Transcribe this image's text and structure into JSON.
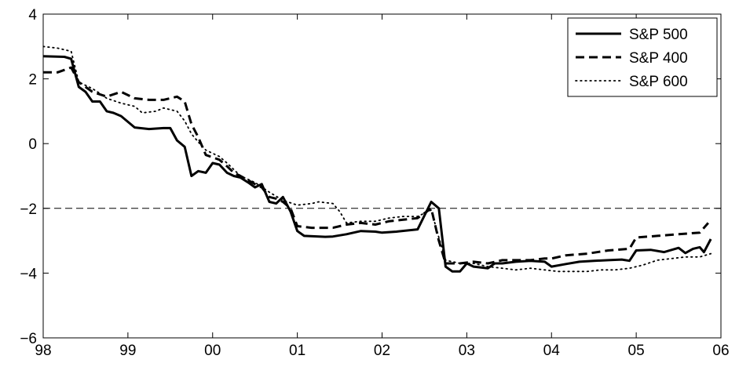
{
  "chart_data": {
    "type": "line",
    "title": "",
    "xlabel": "",
    "ylabel": "",
    "xlim": [
      1998,
      2006
    ],
    "ylim": [
      -6,
      4
    ],
    "x_ticks": [
      {
        "value": 1998,
        "label": "98"
      },
      {
        "value": 1999,
        "label": "99"
      },
      {
        "value": 2000,
        "label": "00"
      },
      {
        "value": 2001,
        "label": "01"
      },
      {
        "value": 2002,
        "label": "02"
      },
      {
        "value": 2003,
        "label": "03"
      },
      {
        "value": 2004,
        "label": "04"
      },
      {
        "value": 2005,
        "label": "05"
      },
      {
        "value": 2006,
        "label": "06"
      }
    ],
    "y_ticks": [
      {
        "value": 4,
        "label": "4"
      },
      {
        "value": 2,
        "label": "2"
      },
      {
        "value": 0,
        "label": "0"
      },
      {
        "value": -2,
        "label": "−2"
      },
      {
        "value": -4,
        "label": "−4"
      },
      {
        "value": -6,
        "label": "−6"
      }
    ],
    "grid": false,
    "legend_position": "top-right",
    "reference_line": {
      "y": -2,
      "style": "dashed"
    },
    "series": [
      {
        "name": "S&P 500",
        "style": "solid",
        "color": "#000000",
        "points": [
          [
            1998.0,
            2.7
          ],
          [
            1998.25,
            2.68
          ],
          [
            1998.33,
            2.62
          ],
          [
            1998.42,
            1.75
          ],
          [
            1998.5,
            1.6
          ],
          [
            1998.58,
            1.3
          ],
          [
            1998.67,
            1.3
          ],
          [
            1998.75,
            1.0
          ],
          [
            1998.83,
            0.95
          ],
          [
            1998.92,
            0.85
          ],
          [
            1999.08,
            0.5
          ],
          [
            1999.25,
            0.45
          ],
          [
            1999.42,
            0.48
          ],
          [
            1999.5,
            0.48
          ],
          [
            1999.58,
            0.1
          ],
          [
            1999.67,
            -0.1
          ],
          [
            1999.75,
            -1.0
          ],
          [
            1999.83,
            -0.85
          ],
          [
            1999.92,
            -0.9
          ],
          [
            2000.0,
            -0.6
          ],
          [
            2000.08,
            -0.65
          ],
          [
            2000.17,
            -0.9
          ],
          [
            2000.25,
            -1.0
          ],
          [
            2000.33,
            -1.05
          ],
          [
            2000.42,
            -1.2
          ],
          [
            2000.5,
            -1.35
          ],
          [
            2000.58,
            -1.25
          ],
          [
            2000.67,
            -1.8
          ],
          [
            2000.75,
            -1.85
          ],
          [
            2000.83,
            -1.65
          ],
          [
            2000.92,
            -2.1
          ],
          [
            2001.0,
            -2.7
          ],
          [
            2001.08,
            -2.85
          ],
          [
            2001.33,
            -2.88
          ],
          [
            2001.42,
            -2.87
          ],
          [
            2001.58,
            -2.8
          ],
          [
            2001.75,
            -2.7
          ],
          [
            2001.92,
            -2.72
          ],
          [
            2002.0,
            -2.75
          ],
          [
            2002.17,
            -2.72
          ],
          [
            2002.42,
            -2.65
          ],
          [
            2002.58,
            -1.8
          ],
          [
            2002.67,
            -2.0
          ],
          [
            2002.75,
            -3.8
          ],
          [
            2002.83,
            -3.95
          ],
          [
            2002.92,
            -3.95
          ],
          [
            2003.0,
            -3.7
          ],
          [
            2003.08,
            -3.8
          ],
          [
            2003.25,
            -3.85
          ],
          [
            2003.33,
            -3.7
          ],
          [
            2003.42,
            -3.7
          ],
          [
            2003.58,
            -3.65
          ],
          [
            2003.75,
            -3.62
          ],
          [
            2003.92,
            -3.65
          ],
          [
            2004.0,
            -3.8
          ],
          [
            2004.17,
            -3.72
          ],
          [
            2004.33,
            -3.65
          ],
          [
            2004.5,
            -3.62
          ],
          [
            2004.67,
            -3.6
          ],
          [
            2004.83,
            -3.58
          ],
          [
            2004.92,
            -3.62
          ],
          [
            2005.0,
            -3.3
          ],
          [
            2005.17,
            -3.28
          ],
          [
            2005.33,
            -3.35
          ],
          [
            2005.5,
            -3.22
          ],
          [
            2005.58,
            -3.38
          ],
          [
            2005.67,
            -3.25
          ],
          [
            2005.75,
            -3.2
          ],
          [
            2005.8,
            -3.35
          ],
          [
            2005.88,
            -2.95
          ]
        ]
      },
      {
        "name": "S&P 400",
        "style": "dashed",
        "color": "#000000",
        "points": [
          [
            1998.0,
            2.2
          ],
          [
            1998.17,
            2.2
          ],
          [
            1998.33,
            2.35
          ],
          [
            1998.42,
            1.9
          ],
          [
            1998.58,
            1.6
          ],
          [
            1998.75,
            1.45
          ],
          [
            1998.92,
            1.6
          ],
          [
            1999.08,
            1.4
          ],
          [
            1999.25,
            1.35
          ],
          [
            1999.42,
            1.35
          ],
          [
            1999.58,
            1.45
          ],
          [
            1999.67,
            1.3
          ],
          [
            1999.75,
            0.6
          ],
          [
            1999.83,
            0.2
          ],
          [
            1999.92,
            -0.35
          ],
          [
            2000.08,
            -0.5
          ],
          [
            2000.17,
            -0.7
          ],
          [
            2000.25,
            -0.9
          ],
          [
            2000.33,
            -1.0
          ],
          [
            2000.5,
            -1.25
          ],
          [
            2000.58,
            -1.35
          ],
          [
            2000.67,
            -1.65
          ],
          [
            2000.75,
            -1.7
          ],
          [
            2000.83,
            -1.8
          ],
          [
            2000.92,
            -2.0
          ],
          [
            2001.0,
            -2.55
          ],
          [
            2001.17,
            -2.6
          ],
          [
            2001.42,
            -2.6
          ],
          [
            2001.58,
            -2.5
          ],
          [
            2001.75,
            -2.45
          ],
          [
            2001.92,
            -2.5
          ],
          [
            2002.08,
            -2.4
          ],
          [
            2002.25,
            -2.35
          ],
          [
            2002.42,
            -2.3
          ],
          [
            2002.58,
            -2.0
          ],
          [
            2002.67,
            -3.0
          ],
          [
            2002.75,
            -3.7
          ],
          [
            2002.92,
            -3.7
          ],
          [
            2003.08,
            -3.65
          ],
          [
            2003.25,
            -3.7
          ],
          [
            2003.42,
            -3.6
          ],
          [
            2003.58,
            -3.6
          ],
          [
            2003.75,
            -3.6
          ],
          [
            2003.92,
            -3.55
          ],
          [
            2004.0,
            -3.55
          ],
          [
            2004.17,
            -3.45
          ],
          [
            2004.42,
            -3.4
          ],
          [
            2004.67,
            -3.3
          ],
          [
            2004.92,
            -3.25
          ],
          [
            2005.0,
            -2.9
          ],
          [
            2005.25,
            -2.85
          ],
          [
            2005.5,
            -2.8
          ],
          [
            2005.75,
            -2.75
          ],
          [
            2005.85,
            -2.45
          ]
        ]
      },
      {
        "name": "S&P 600",
        "style": "dotted",
        "color": "#000000",
        "points": [
          [
            1998.0,
            3.0
          ],
          [
            1998.17,
            2.95
          ],
          [
            1998.33,
            2.85
          ],
          [
            1998.42,
            1.9
          ],
          [
            1998.58,
            1.7
          ],
          [
            1998.67,
            1.55
          ],
          [
            1998.75,
            1.4
          ],
          [
            1998.92,
            1.25
          ],
          [
            1999.08,
            1.15
          ],
          [
            1999.17,
            0.95
          ],
          [
            1999.33,
            1.0
          ],
          [
            1999.42,
            1.1
          ],
          [
            1999.58,
            1.0
          ],
          [
            1999.67,
            0.7
          ],
          [
            1999.75,
            0.3
          ],
          [
            1999.83,
            0.05
          ],
          [
            1999.92,
            -0.2
          ],
          [
            2000.08,
            -0.4
          ],
          [
            2000.17,
            -0.6
          ],
          [
            2000.33,
            -1.0
          ],
          [
            2000.5,
            -1.2
          ],
          [
            2000.67,
            -1.5
          ],
          [
            2000.83,
            -1.75
          ],
          [
            2001.0,
            -1.9
          ],
          [
            2001.17,
            -1.85
          ],
          [
            2001.25,
            -1.8
          ],
          [
            2001.42,
            -1.85
          ],
          [
            2001.5,
            -2.1
          ],
          [
            2001.58,
            -2.45
          ],
          [
            2001.75,
            -2.4
          ],
          [
            2001.92,
            -2.4
          ],
          [
            2002.08,
            -2.3
          ],
          [
            2002.25,
            -2.25
          ],
          [
            2002.42,
            -2.25
          ],
          [
            2002.58,
            -2.05
          ],
          [
            2002.67,
            -2.9
          ],
          [
            2002.75,
            -3.6
          ],
          [
            2002.92,
            -3.7
          ],
          [
            2003.08,
            -3.7
          ],
          [
            2003.25,
            -3.8
          ],
          [
            2003.42,
            -3.85
          ],
          [
            2003.58,
            -3.9
          ],
          [
            2003.75,
            -3.85
          ],
          [
            2003.92,
            -3.9
          ],
          [
            2004.08,
            -3.95
          ],
          [
            2004.25,
            -3.95
          ],
          [
            2004.42,
            -3.95
          ],
          [
            2004.58,
            -3.9
          ],
          [
            2004.75,
            -3.9
          ],
          [
            2004.92,
            -3.85
          ],
          [
            2005.08,
            -3.75
          ],
          [
            2005.25,
            -3.6
          ],
          [
            2005.42,
            -3.55
          ],
          [
            2005.58,
            -3.5
          ],
          [
            2005.75,
            -3.5
          ],
          [
            2005.88,
            -3.4
          ]
        ]
      }
    ]
  }
}
